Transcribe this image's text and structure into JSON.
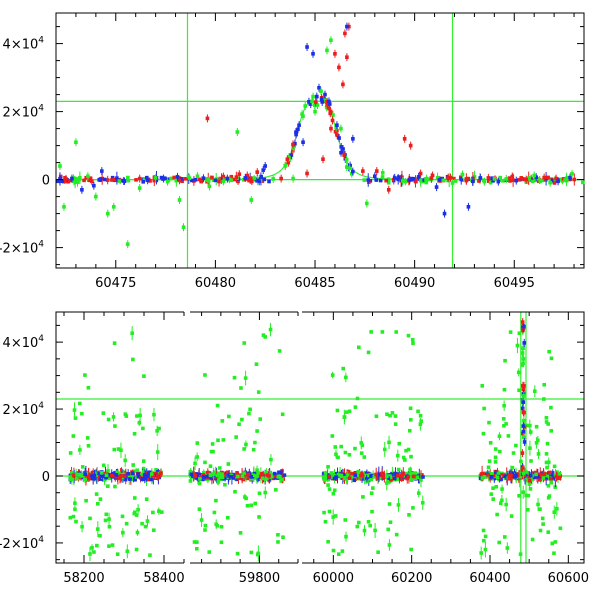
{
  "colors": {
    "red": "#ee1c1c",
    "blue": "#1c2ee8",
    "green": "#22ee22",
    "line": "#33ee33"
  },
  "chart_data": [
    {
      "type": "scatter",
      "panel": "top",
      "xlim": [
        60472,
        60498.5
      ],
      "ylim": [
        -26000,
        49000
      ],
      "x_ticks": [
        60475,
        60480,
        60485,
        60490,
        60495
      ],
      "x_tick_labels": [
        "60475",
        "60480",
        "60485",
        "60490",
        "60495"
      ],
      "y_ticks": [
        -20000,
        0,
        20000,
        40000
      ],
      "y_tick_labels": [
        {
          "mant": "-2×10",
          "exp": "4"
        },
        {
          "mant": "0",
          "exp": ""
        },
        {
          "mant": "2×10",
          "exp": "4"
        },
        {
          "mant": "4×10",
          "exp": "4"
        }
      ],
      "hlines": [
        0,
        23000
      ],
      "vlines": [
        60478.6,
        60491.9
      ],
      "model": {
        "type": "lorentzian",
        "t0": 60485.1,
        "peak": 23000,
        "width": 1.1
      },
      "series": [
        {
          "color": "red",
          "points": [
            [
              60472.5,
              200
            ],
            [
              60473.8,
              -500
            ],
            [
              60476.2,
              300
            ],
            [
              60478.2,
              -200
            ],
            [
              60479.6,
              18000
            ],
            [
              60480.4,
              900
            ],
            [
              60481.2,
              1600
            ],
            [
              60481.6,
              1200
            ],
            [
              60482.1,
              2200
            ],
            [
              60483.3,
              300
            ],
            [
              60484.6,
              1800
            ],
            [
              60485.4,
              6000
            ],
            [
              60485.8,
              15000
            ],
            [
              60486.0,
              37000
            ],
            [
              60486.2,
              33000
            ],
            [
              60486.4,
              28000
            ],
            [
              60486.5,
              43000
            ],
            [
              60486.7,
              45000
            ],
            [
              60486.6,
              36000
            ],
            [
              60487.4,
              2500
            ],
            [
              60488.1,
              2500
            ],
            [
              60488.7,
              -3000
            ],
            [
              60489.5,
              12000
            ],
            [
              60489.8,
              10000
            ],
            [
              60490.3,
              1800
            ],
            [
              60490.9,
              1200
            ],
            [
              60491.8,
              600
            ],
            [
              60492.6,
              -300
            ],
            [
              60493.7,
              500
            ],
            [
              60494.9,
              900
            ],
            [
              60495.6,
              0
            ],
            [
              60496.5,
              600
            ],
            [
              60497.1,
              300
            ]
          ]
        },
        {
          "color": "blue",
          "points": [
            [
              60472.8,
              300
            ],
            [
              60473.3,
              -3000
            ],
            [
              60473.9,
              -1800
            ],
            [
              60474.3,
              2500
            ],
            [
              60475.4,
              -400
            ],
            [
              60476.6,
              -200
            ],
            [
              60477.4,
              300
            ],
            [
              60478.1,
              800
            ],
            [
              60479.4,
              400
            ],
            [
              60480.6,
              300
            ],
            [
              60481.5,
              500
            ],
            [
              60482.2,
              -500
            ],
            [
              60482.4,
              2800
            ],
            [
              60482.5,
              4000
            ],
            [
              60484.2,
              16000
            ],
            [
              60484.4,
              11000
            ],
            [
              60484.6,
              39000
            ],
            [
              60484.9,
              37000
            ],
            [
              60485.2,
              27000
            ],
            [
              60485.5,
              25000
            ],
            [
              60485.7,
              23000
            ],
            [
              60486.1,
              16000
            ],
            [
              60486.6,
              45000
            ],
            [
              60486.9,
              12000
            ],
            [
              60488.0,
              1000
            ],
            [
              60489.0,
              500
            ],
            [
              60490.2,
              800
            ],
            [
              60491.1,
              -2200
            ],
            [
              60491.5,
              -10000
            ],
            [
              60492.7,
              -8000
            ],
            [
              60493.3,
              500
            ],
            [
              60494.2,
              -600
            ],
            [
              60495.1,
              -300
            ],
            [
              60496.1,
              700
            ],
            [
              60497.2,
              -500
            ],
            [
              60497.8,
              600
            ]
          ]
        },
        {
          "color": "green",
          "points": [
            [
              60472.2,
              4000
            ],
            [
              60472.4,
              -8000
            ],
            [
              60473.0,
              11000
            ],
            [
              60473.6,
              1000
            ],
            [
              60474.0,
              -5000
            ],
            [
              60474.6,
              -10000
            ],
            [
              60474.9,
              -8000
            ],
            [
              60475.6,
              -19000
            ],
            [
              60476.2,
              -2500
            ],
            [
              60477.0,
              500
            ],
            [
              60477.6,
              -600
            ],
            [
              60478.4,
              -14000
            ],
            [
              60478.2,
              -6000
            ],
            [
              60479.1,
              1000
            ],
            [
              60479.7,
              -2000
            ],
            [
              60480.4,
              -500
            ],
            [
              60481.1,
              14000
            ],
            [
              60481.8,
              -6000
            ],
            [
              60482.9,
              200
            ],
            [
              60483.9,
              300
            ],
            [
              60485.0,
              20000
            ],
            [
              60485.3,
              26000
            ],
            [
              60485.6,
              38000
            ],
            [
              60485.8,
              41000
            ],
            [
              60486.3,
              15000
            ],
            [
              60487.6,
              -7000
            ],
            [
              60488.4,
              2000
            ],
            [
              60489.4,
              -400
            ],
            [
              60490.6,
              300
            ],
            [
              60491.9,
              -1000
            ],
            [
              60492.4,
              1500
            ],
            [
              60493.5,
              -600
            ],
            [
              60494.6,
              200
            ],
            [
              60496.0,
              1200
            ],
            [
              60496.8,
              -900
            ],
            [
              60497.9,
              1700
            ]
          ]
        }
      ]
    },
    {
      "type": "scatter",
      "panel": "bottom",
      "x_ticks": [
        58200,
        58400,
        59800,
        60000,
        60200,
        60400,
        60600
      ],
      "x_tick_labels": [
        "58200",
        "58400",
        "59800",
        "60000",
        "60200",
        "60400",
        "60600"
      ],
      "x_segments": [
        {
          "from": 58130,
          "to": 58450
        },
        {
          "from": 59620,
          "to": 59900
        },
        {
          "from": 59920,
          "to": 60640
        }
      ],
      "ylim": [
        -26000,
        49000
      ],
      "y_ticks": [
        -20000,
        0,
        20000,
        40000
      ],
      "y_tick_labels": [
        {
          "mant": "-2×10",
          "exp": "4"
        },
        {
          "mant": "0",
          "exp": ""
        },
        {
          "mant": "2×10",
          "exp": "4"
        },
        {
          "mant": "4×10",
          "exp": "4"
        }
      ],
      "hlines": [
        0,
        23000
      ],
      "vlines": [
        60478.6,
        60491.9
      ],
      "seasons": [
        [
          58165,
          58395
        ],
        [
          59615,
          59865
        ],
        [
          59975,
          60230
        ],
        [
          60375,
          60580
        ]
      ]
    }
  ]
}
